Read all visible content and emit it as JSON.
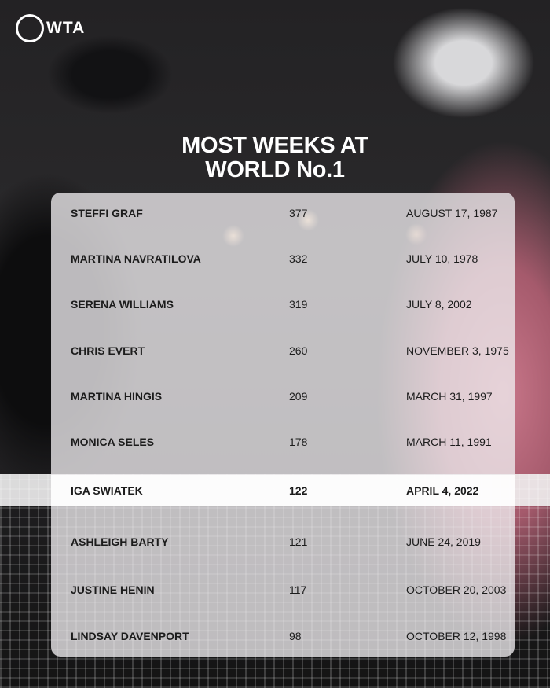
{
  "brand": {
    "logo_text": "WTA"
  },
  "title": {
    "line1": "MOST WEEKS AT",
    "line2": "WORLD No.1"
  },
  "rows": [
    {
      "name": "STEFFI GRAF",
      "weeks": "377",
      "date": "AUGUST 17, 1987"
    },
    {
      "name": "MARTINA NAVRATILOVA",
      "weeks": "332",
      "date": "JULY 10, 1978"
    },
    {
      "name": "SERENA WILLIAMS",
      "weeks": "319",
      "date": "JULY 8, 2002"
    },
    {
      "name": "CHRIS EVERT",
      "weeks": "260",
      "date": "NOVEMBER 3, 1975"
    },
    {
      "name": "MARTINA HINGIS",
      "weeks": "209",
      "date": "MARCH 31, 1997"
    },
    {
      "name": "MONICA SELES",
      "weeks": "178",
      "date": "MARCH 11, 1991"
    },
    {
      "name": "IGA SWIATEK",
      "weeks": "122",
      "date": "APRIL 4, 2022",
      "highlight": true
    },
    {
      "name": "ASHLEIGH BARTY",
      "weeks": "121",
      "date": "JUNE 24, 2019"
    },
    {
      "name": "JUSTINE HENIN",
      "weeks": "117",
      "date": "OCTOBER 20, 2003"
    },
    {
      "name": "LINDSAY DAVENPORT",
      "weeks": "98",
      "date": "OCTOBER 12, 1998"
    }
  ]
}
